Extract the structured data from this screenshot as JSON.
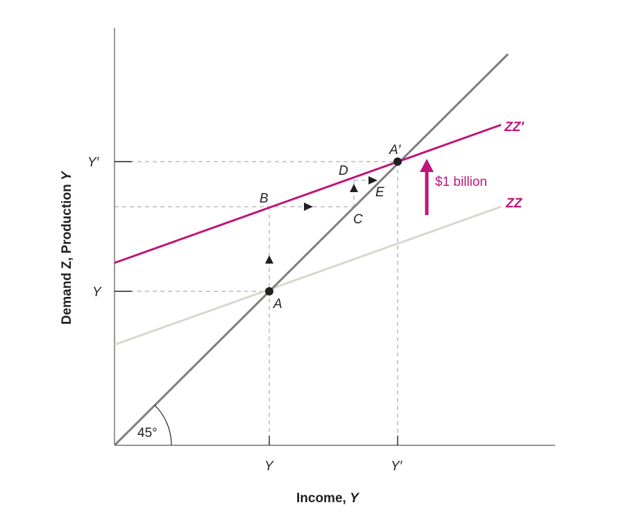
{
  "axes": {
    "x_title": "Income, ",
    "x_title_var": "Y",
    "y_title": "Demand Z, Production ",
    "y_title_var": "Y"
  },
  "ticks": {
    "x": [
      "Y",
      "Y′"
    ],
    "y": [
      "Y",
      "Y′"
    ]
  },
  "lines": {
    "forty_five": "45°",
    "zz": "ZZ",
    "zz_prime": "ZZ′"
  },
  "points": [
    "A",
    "A′",
    "B",
    "C",
    "D",
    "E"
  ],
  "shift_label": "$1 billion",
  "colors": {
    "magenta": "#c0157a",
    "gray_line": "#7d7d7d",
    "light_line": "#d6d7cd",
    "text": "#231f20"
  }
}
